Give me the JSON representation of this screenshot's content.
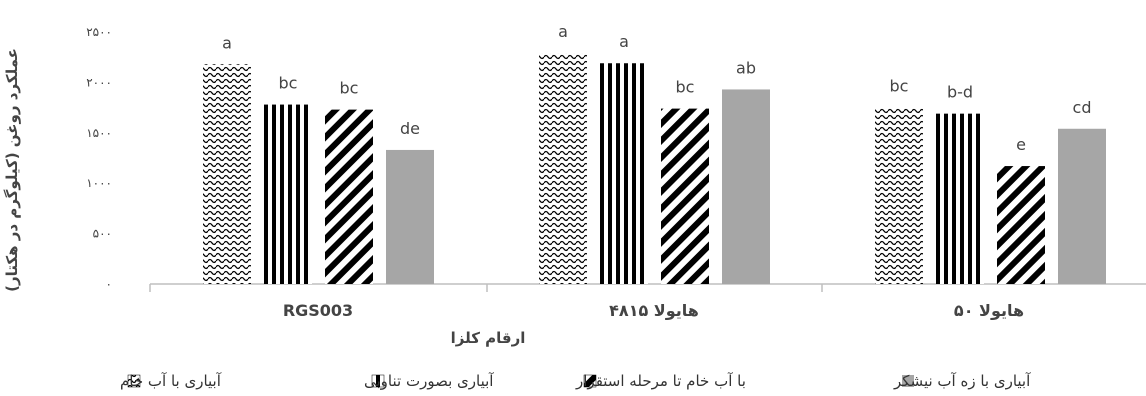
{
  "chart_data": {
    "type": "bar",
    "xlabel": "ارقام کلزا",
    "ylabel": "عملکرد روغن (کیلوگرم در هکتار)",
    "ylim": [
      0,
      2500
    ],
    "yticks": [
      {
        "value": 0,
        "label": "۰"
      },
      {
        "value": 500,
        "label": "۵۰۰"
      },
      {
        "value": 1000,
        "label": "۱۰۰۰"
      },
      {
        "value": 1500,
        "label": "۱۵۰۰"
      },
      {
        "value": 2000,
        "label": "۲۰۰۰"
      },
      {
        "value": 2500,
        "label": "۲۵۰۰"
      }
    ],
    "categories": [
      "RGS003",
      "هایولا ۴۸۱۵",
      "هایولا ۵۰"
    ],
    "series": [
      {
        "name": "آبیاری با آب خام",
        "pattern": "wave",
        "values": [
          2180,
          2290,
          1750
        ],
        "labels": [
          "a",
          "a",
          "bc"
        ]
      },
      {
        "name": "آبیاری بصورت تناوبی",
        "pattern": "vertical",
        "values": [
          1780,
          2190,
          1690
        ],
        "labels": [
          "bc",
          "a",
          "b-d"
        ]
      },
      {
        "name": "با آب خام تا مرحله استقرار",
        "pattern": "diagonal",
        "values": [
          1730,
          1740,
          1170
        ],
        "labels": [
          "bc",
          "bc",
          "e"
        ]
      },
      {
        "name": "آبیاری با زه آب نیشکر",
        "pattern": "solid",
        "values": [
          1330,
          1930,
          1540
        ],
        "labels": [
          "de",
          "ab",
          "cd"
        ]
      }
    ],
    "legend_position": "bottom",
    "grid": false,
    "colors": {
      "bar": "#000000",
      "solid": "#a6a6a6",
      "axis": "#bfbfbf",
      "text": "#444444"
    }
  }
}
